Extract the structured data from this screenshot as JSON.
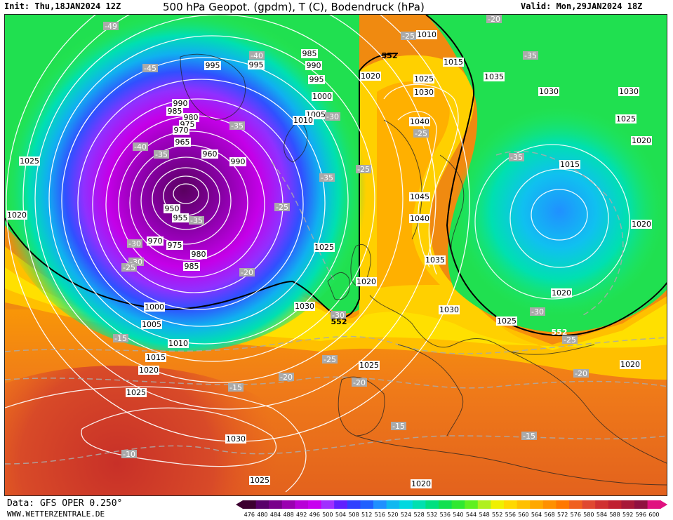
{
  "header": {
    "init": "Init: Thu,18JAN2024 12Z",
    "title": "500 hPa Geopot. (gpdm), T (C), Bodendruck (hPa)",
    "valid": "Valid: Mon,29JAN2024 18Z"
  },
  "footer": {
    "data_source": "Data: GFS OPER 0.250°",
    "site": "WWW.WETTERZENTRALE.DE"
  },
  "scale": {
    "values": [
      "476",
      "480",
      "484",
      "488",
      "492",
      "496",
      "500",
      "504",
      "508",
      "512",
      "516",
      "520",
      "524",
      "528",
      "532",
      "536",
      "540",
      "544",
      "548",
      "552",
      "556",
      "560",
      "564",
      "568",
      "572",
      "576",
      "580",
      "584",
      "588",
      "592",
      "596",
      "600"
    ],
    "colors": [
      "#3c0030",
      "#58006a",
      "#78008a",
      "#9a00b0",
      "#b800d8",
      "#c800f0",
      "#a030ff",
      "#6020ff",
      "#3040ff",
      "#2060ff",
      "#2090ff",
      "#10b8f0",
      "#00d8e0",
      "#00e0b0",
      "#00e080",
      "#10e050",
      "#30e830",
      "#60f020",
      "#b0f020",
      "#f0f000",
      "#ffd800",
      "#ffc000",
      "#ffa800",
      "#ff9000",
      "#ff7800",
      "#f06020",
      "#e04830",
      "#d03030",
      "#c02030",
      "#a81838",
      "#901040",
      "#e01080"
    ]
  },
  "map": {
    "pressure_labels": [
      "1025",
      "1020",
      "995",
      "990",
      "985",
      "980",
      "975",
      "970",
      "965",
      "960",
      "955",
      "950",
      "985",
      "995",
      "990",
      "995",
      "1000",
      "1005",
      "1010",
      "1010",
      "1015",
      "1020",
      "1025",
      "1030",
      "1040",
      "1045",
      "1040",
      "1035",
      "1030",
      "1035",
      "1030",
      "1025",
      "1020",
      "1015",
      "1020",
      "1020",
      "1020",
      "1030",
      "1030",
      "1025",
      "1025",
      "1020",
      "1025",
      "1005",
      "1010",
      "1015",
      "1020",
      "1025",
      "1030",
      "1025",
      "1020",
      "1000",
      "990",
      "985",
      "980",
      "975",
      "970",
      "1005",
      "1020",
      "1030",
      "1025",
      "1020"
    ],
    "temp_labels": [
      "-49",
      "-45",
      "-40",
      "-40",
      "-35",
      "-35",
      "-35",
      "-35",
      "-30",
      "-30",
      "-30",
      "-30",
      "-25",
      "-25",
      "-25",
      "-25",
      "-25",
      "-20",
      "-20",
      "-20",
      "-20",
      "-15",
      "-15",
      "-15",
      "-15",
      "-10",
      "-35",
      "-35",
      "-30",
      "-25",
      "-25",
      "-20"
    ],
    "height_labels": [
      "552",
      "552",
      "552"
    ]
  }
}
